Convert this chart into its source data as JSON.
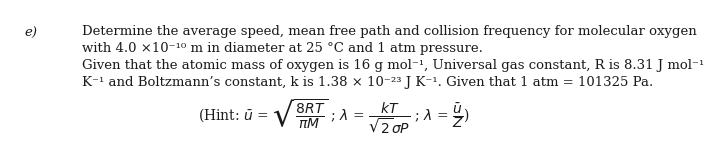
{
  "label_e": "e)",
  "line1": "Determine the average speed, mean free path and collision frequency for molecular oxygen",
  "line2": "with 4.0 ×10⁻¹⁰ m in diameter at 25 °C and 1 atm pressure.",
  "line3": "Given that the atomic mass of oxygen is 16 g mol⁻¹, Universal gas constant, R is 8.31 J mol⁻¹",
  "line4": "K⁻¹ and Boltzmann’s constant, k is 1.38 × 10⁻²³ J K⁻¹. Given that 1 atm = 101325 Pa.",
  "background_color": "#ffffff",
  "text_color": "#1a1a1a",
  "font_size": 9.5,
  "hint_formula": "(Hint: $\\bar{u}$ = $\\sqrt{\\dfrac{8RT}{\\pi M}}$ ; $\\lambda$ = $\\dfrac{kT}{\\sqrt{2}\\sigma P}$ ; $\\lambda$ = $\\dfrac{\\bar{u}}{Z}$)"
}
